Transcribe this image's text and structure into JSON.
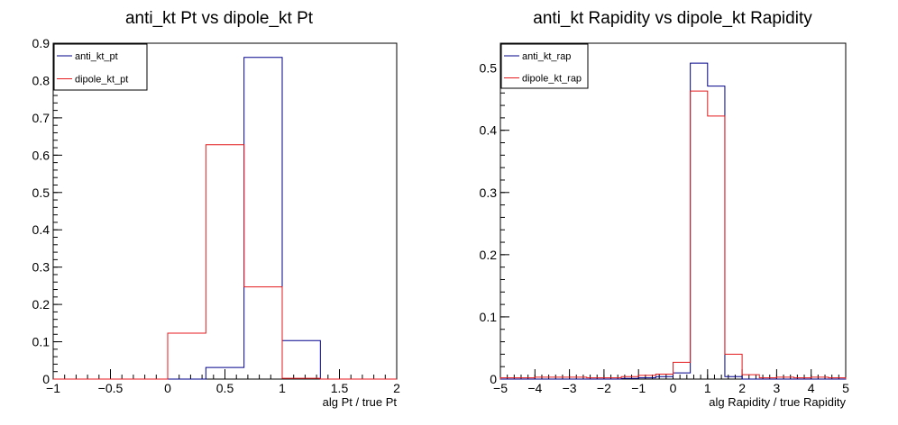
{
  "chart_data": [
    {
      "type": "histogram",
      "title": "anti_kt Pt vs dipole_kt Pt",
      "xlabel": "alg Pt / true Pt",
      "ylabel": "",
      "xlim": [
        -1,
        2
      ],
      "ylim": [
        0,
        0.9
      ],
      "xticks": [
        -1,
        -0.5,
        0,
        0.5,
        1,
        1.5,
        2
      ],
      "yticks": [
        0,
        0.1,
        0.2,
        0.3,
        0.4,
        0.5,
        0.6,
        0.7,
        0.8,
        0.9
      ],
      "xtick_labels": [
        "−1",
        "−0.5",
        "0",
        "0.5",
        "1",
        "1.5",
        "2"
      ],
      "ytick_labels": [
        "0",
        "0.1",
        "0.2",
        "0.3",
        "0.4",
        "0.5",
        "0.6",
        "0.7",
        "0.8",
        "0.9"
      ],
      "legend_position": "top-left",
      "bin_edges": [
        -1,
        -0.6667,
        -0.3333,
        0,
        0.3333,
        0.6667,
        1,
        1.3333,
        1.6667,
        2
      ],
      "series": [
        {
          "name": "anti_kt_pt",
          "color": "#00008b",
          "values": [
            0,
            0,
            0,
            0,
            0.031,
            0.862,
            0.103,
            0,
            0
          ]
        },
        {
          "name": "dipole_kt_pt",
          "color": "#e41a1c",
          "values": [
            0,
            0,
            0,
            0.123,
            0.628,
            0.247,
            0.002,
            0,
            0
          ]
        }
      ]
    },
    {
      "type": "histogram",
      "title": "anti_kt Rapidity vs dipole_kt Rapidity",
      "xlabel": "alg Rapidity / true Rapidity",
      "ylabel": "",
      "xlim": [
        -5,
        5
      ],
      "ylim": [
        0,
        0.54
      ],
      "xticks": [
        -5,
        -4,
        -3,
        -2,
        -1,
        0,
        1,
        2,
        3,
        4,
        5
      ],
      "yticks": [
        0,
        0.1,
        0.2,
        0.3,
        0.4,
        0.5
      ],
      "xtick_labels": [
        "−5",
        "−4",
        "−3",
        "−2",
        "−1",
        "0",
        "1",
        "2",
        "3",
        "4",
        "5"
      ],
      "ytick_labels": [
        "0",
        "0.1",
        "0.2",
        "0.3",
        "0.4",
        "0.5"
      ],
      "legend_position": "top-left",
      "bin_edges": [
        -5,
        -4.5,
        -4,
        -3.5,
        -3,
        -2.5,
        -2,
        -1.5,
        -1,
        -0.5,
        0,
        0.5,
        1,
        1.5,
        2,
        2.5,
        3,
        3.5,
        4,
        4.5,
        5
      ],
      "series": [
        {
          "name": "anti_kt_rap",
          "color": "#00008b",
          "values": [
            0,
            0,
            0,
            0,
            0,
            0,
            0,
            0.001,
            0.002,
            0.004,
            0.01,
            0.508,
            0.471,
            0.004,
            0,
            0,
            0,
            0,
            0,
            0
          ]
        },
        {
          "name": "dipole_kt_rap",
          "color": "#e41a1c",
          "values": [
            0.002,
            0.002,
            0.003,
            0.003,
            0.003,
            0.002,
            0.002,
            0.004,
            0.006,
            0.008,
            0.027,
            0.463,
            0.423,
            0.04,
            0.007,
            0.002,
            0.003,
            0.002,
            0.003,
            0.002
          ]
        }
      ]
    }
  ]
}
